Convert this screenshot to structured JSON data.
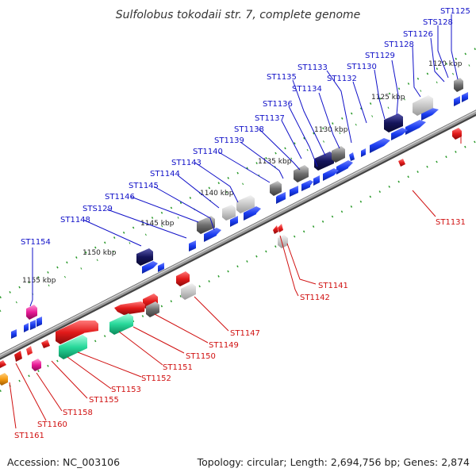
{
  "title": "Sulfolobus tokodaii str. 7, complete genome",
  "accession": "Accession: NC_003106",
  "topology": "Topology: circular; Length: 2,694,756 bp; Genes: 2,874",
  "colors": {
    "plus_strand": "#1a3cf0",
    "minus_strand": "#e21a1a",
    "blue_label": "#1010c8",
    "red_label": "#d01010",
    "backbone": "#808080",
    "tick": "#1f8a1f"
  },
  "kbp_labels": [
    "1120 kbp",
    "1125 kbp",
    "1130 kbp",
    "1135 kbp",
    "1140 kbp",
    "1145 kbp",
    "1150 kbp",
    "1155 kbp"
  ],
  "plus_genes": [
    "ST1125",
    "STS128",
    "ST1126",
    "ST1128",
    "ST1129",
    "ST1130",
    "ST1132",
    "ST1133",
    "ST1134",
    "ST1135",
    "ST1136",
    "ST1137",
    "ST1138",
    "ST1139",
    "ST1140",
    "ST1143",
    "ST1144",
    "ST1145",
    "ST1146",
    "STS129",
    "ST1148",
    "ST1154"
  ],
  "minus_genes": [
    "ST1131",
    "ST1141",
    "ST1142",
    "ST1147",
    "ST1149",
    "ST1150",
    "ST1151",
    "ST1152",
    "ST1153",
    "ST1155",
    "ST1158",
    "ST1160",
    "ST1161"
  ]
}
